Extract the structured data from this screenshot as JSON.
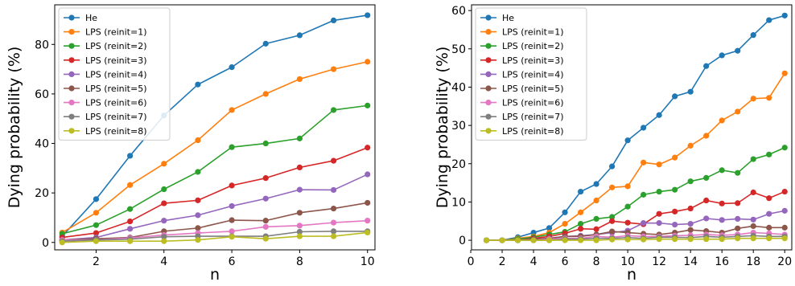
{
  "chart_data": [
    {
      "type": "line",
      "xlabel": "n",
      "ylabel": "Dying probability (%)",
      "xlim": [
        0.78,
        10.22
      ],
      "ylim": [
        -3,
        96
      ],
      "xticks": [
        2,
        4,
        6,
        8,
        10
      ],
      "yticks": [
        0,
        20,
        40,
        60,
        80
      ],
      "grid": false,
      "legend_position": "top-left",
      "x": [
        1,
        2,
        3,
        4,
        5,
        6,
        7,
        8,
        9,
        10
      ],
      "series": [
        {
          "name": "He",
          "color": "#1f77b4",
          "values": [
            2.5,
            17.5,
            35,
            51.3,
            63.8,
            70.8,
            80.3,
            83.7,
            89.7,
            91.8
          ]
        },
        {
          "name": "LPS (reinit=1)",
          "color": "#ff7f0e",
          "values": [
            4,
            12,
            23.2,
            31.8,
            41.3,
            53.5,
            60,
            66,
            70,
            73
          ]
        },
        {
          "name": "LPS (reinit=2)",
          "color": "#2ca02c",
          "values": [
            3.5,
            7,
            13.5,
            21.5,
            28.5,
            38.5,
            40,
            42,
            53.5,
            55.3
          ]
        },
        {
          "name": "LPS (reinit=3)",
          "color": "#d62728",
          "values": [
            2,
            3.8,
            8.5,
            15.8,
            17,
            23,
            26,
            30.3,
            33,
            38.3
          ]
        },
        {
          "name": "LPS (reinit=4)",
          "color": "#9467bd",
          "values": [
            1,
            2,
            5.5,
            8.8,
            11,
            14.7,
            17.7,
            21.3,
            21.2,
            27.5
          ]
        },
        {
          "name": "LPS (reinit=5)",
          "color": "#8c564b",
          "values": [
            1,
            1.5,
            2,
            4.5,
            5.8,
            9,
            8.8,
            12,
            13.7,
            16
          ]
        },
        {
          "name": "LPS (reinit=6)",
          "color": "#e377c2",
          "values": [
            1,
            1,
            1.8,
            3,
            3.8,
            4.5,
            6.3,
            6.8,
            8,
            8.8
          ]
        },
        {
          "name": "LPS (reinit=7)",
          "color": "#7f7f7f",
          "values": [
            0.5,
            1,
            1.3,
            2.3,
            2.5,
            2.5,
            2.5,
            4.3,
            4.5,
            4.5
          ]
        },
        {
          "name": "LPS (reinit=8)",
          "color": "#bcbd22",
          "values": [
            0,
            0.5,
            0.5,
            0.5,
            1,
            2.3,
            1.5,
            2.5,
            2.5,
            4
          ]
        }
      ]
    },
    {
      "type": "line",
      "xlabel": "n",
      "ylabel": "Dying probability (%)",
      "xlim": [
        0.05,
        20.45
      ],
      "ylim": [
        -2.5,
        61.5
      ],
      "xticks": [
        0,
        2,
        4,
        6,
        8,
        10,
        12,
        14,
        16,
        18,
        20
      ],
      "yticks": [
        0,
        10,
        20,
        30,
        40,
        50,
        60
      ],
      "grid": false,
      "legend_position": "top-left",
      "x": [
        1,
        2,
        3,
        4,
        5,
        6,
        7,
        8,
        9,
        10,
        11,
        12,
        13,
        14,
        15,
        16,
        17,
        18,
        19,
        20
      ],
      "series": [
        {
          "name": "He",
          "color": "#1f77b4",
          "values": [
            0,
            0,
            0.8,
            2,
            3.2,
            7.3,
            12.7,
            14.7,
            19.3,
            26.1,
            29.4,
            32.7,
            37.6,
            38.8,
            45.5,
            48.3,
            49.5,
            53.6,
            57.5,
            58.7
          ]
        },
        {
          "name": "LPS (reinit=1)",
          "color": "#ff7f0e",
          "values": [
            0,
            0,
            0.5,
            1,
            2,
            4.3,
            7.3,
            10.4,
            13.8,
            14.1,
            20.3,
            19.8,
            21.6,
            24.7,
            27.3,
            31.3,
            33.6,
            37,
            37.2,
            43.6
          ]
        },
        {
          "name": "LPS (reinit=2)",
          "color": "#2ca02c",
          "values": [
            0,
            0,
            0.3,
            0.8,
            1.5,
            2.2,
            4.3,
            5.6,
            6.1,
            8.8,
            11.9,
            12.7,
            13.2,
            15.4,
            16.3,
            18.3,
            17.6,
            21.2,
            22.4,
            24.2
          ]
        },
        {
          "name": "LPS (reinit=3)",
          "color": "#d62728",
          "values": [
            0,
            0,
            0,
            0.5,
            1,
            1.8,
            3,
            2.9,
            5,
            4.6,
            4.2,
            6.9,
            7.5,
            8.3,
            10.4,
            9.6,
            9.7,
            12.5,
            11,
            12.7
          ]
        },
        {
          "name": "LPS (reinit=4)",
          "color": "#9467bd",
          "values": [
            0,
            0,
            0,
            0.3,
            0.5,
            1,
            1.2,
            1.5,
            2,
            2.5,
            4.5,
            4.5,
            4.1,
            4.3,
            5.7,
            5.3,
            5.6,
            5.4,
            6.9,
            7.7
          ]
        },
        {
          "name": "LPS (reinit=5)",
          "color": "#8c564b",
          "values": [
            0,
            0,
            0,
            0.3,
            0.5,
            1,
            1,
            1.5,
            2.3,
            2,
            1.7,
            1.5,
            2,
            2.7,
            2.4,
            2,
            3.1,
            3.7,
            3.3,
            3.3
          ]
        },
        {
          "name": "LPS (reinit=6)",
          "color": "#e377c2",
          "values": [
            0,
            0,
            0,
            0,
            0.3,
            0.5,
            0.5,
            1,
            0.8,
            1.2,
            1,
            1,
            1.2,
            1.3,
            1.5,
            1.3,
            1.5,
            2,
            1.8,
            1.5
          ]
        },
        {
          "name": "LPS (reinit=7)",
          "color": "#7f7f7f",
          "values": [
            0,
            0,
            0,
            0,
            0,
            0.3,
            0.3,
            0.5,
            0.5,
            0.7,
            0.5,
            0.8,
            0.8,
            0.7,
            1,
            0.8,
            1,
            1.2,
            1,
            1
          ]
        },
        {
          "name": "LPS (reinit=8)",
          "color": "#bcbd22",
          "values": [
            0,
            0,
            0,
            0,
            0,
            0,
            0,
            0,
            0.2,
            0.2,
            0.2,
            0.3,
            0.3,
            0.3,
            0.3,
            0.3,
            0.5,
            0.5,
            0.5,
            0.5
          ]
        }
      ]
    }
  ]
}
